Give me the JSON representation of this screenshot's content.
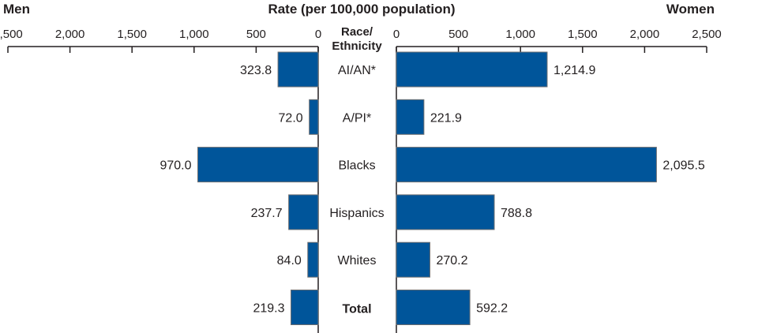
{
  "chart_data": {
    "type": "bar",
    "orientation": "horizontal-butterfly",
    "title": "Rate (per 100,000 population)",
    "left_label": "Men",
    "right_label": "Women",
    "category_header": "Race/ Ethnicity",
    "category_header_lines": [
      "Race/",
      "Ethnicity"
    ],
    "categories": [
      "AI/AN*",
      "A/PI*",
      "Blacks",
      "Hispanics",
      "Whites",
      "Total"
    ],
    "bold_categories": [
      "Total"
    ],
    "series": [
      {
        "name": "Men",
        "values": [
          323.8,
          72.0,
          970.0,
          237.7,
          84.0,
          219.3
        ],
        "labels": [
          "323.8",
          "72.0",
          "970.0",
          "237.7",
          "84.0",
          "219.3"
        ]
      },
      {
        "name": "Women",
        "values": [
          1214.9,
          221.9,
          2095.5,
          788.8,
          270.2,
          592.2
        ],
        "labels": [
          "1,214.9",
          "221.9",
          "2,095.5",
          "788.8",
          "270.2",
          "592.2"
        ]
      }
    ],
    "xlim": [
      0,
      2500
    ],
    "ticks": [
      0,
      500,
      1000,
      1500,
      2000,
      2500
    ],
    "tick_labels": [
      "0",
      "500",
      "1,000",
      "1,500",
      "2,000",
      "2,500"
    ],
    "grid": false,
    "colors": {
      "bar": "#00559a",
      "bar_border": "#6d6e71",
      "axis": "#231f20"
    }
  }
}
